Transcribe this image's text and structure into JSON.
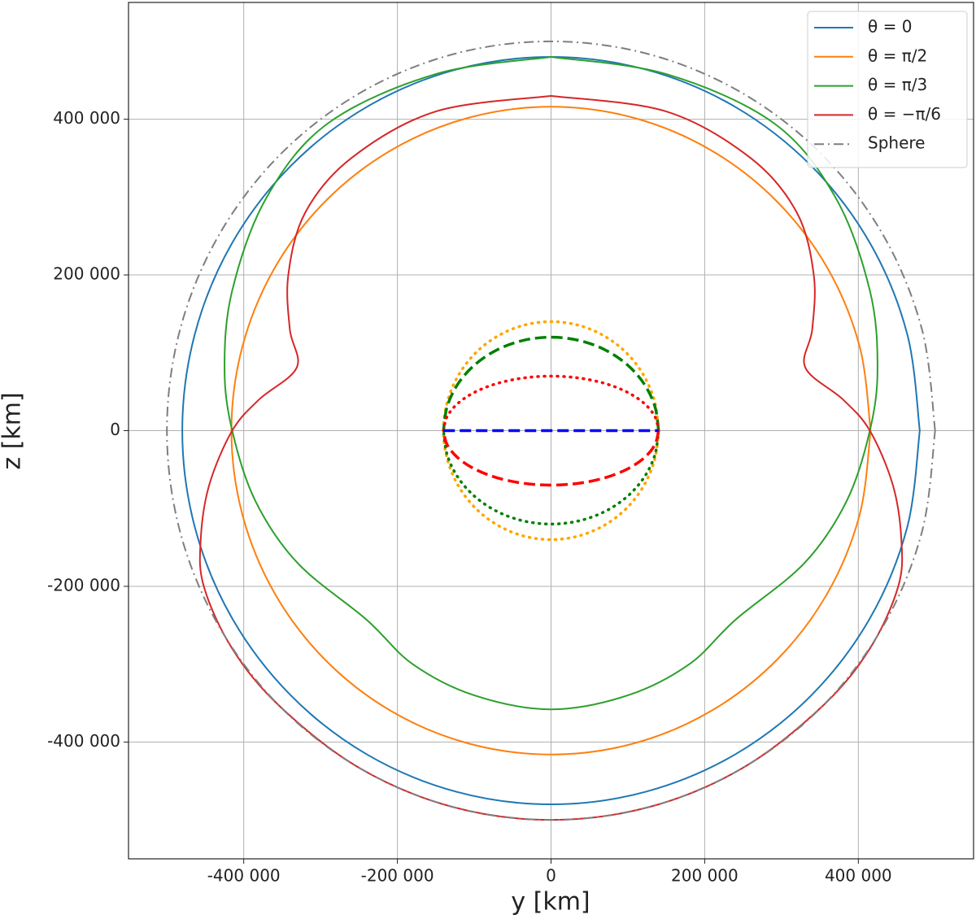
{
  "chart_data": {
    "type": "line",
    "x_label": "y [km]",
    "y_label": "z [km]",
    "xlim": [
      -550000,
      550000
    ],
    "ylim": [
      -550000,
      550000
    ],
    "xticks": [
      {
        "value": -400000,
        "label": "-400 000"
      },
      {
        "value": -200000,
        "label": "-200 000"
      },
      0,
      {
        "value": 200000,
        "label": "200 000"
      },
      {
        "value": 400000,
        "label": "400 000"
      }
    ],
    "yticks": [
      {
        "value": -400000,
        "label": "-400 000"
      },
      {
        "value": -200000,
        "label": "-200 000"
      },
      0,
      {
        "value": 200000,
        "label": "200 000"
      },
      {
        "value": 400000,
        "label": "400 000"
      }
    ],
    "grid": true,
    "legend": "upper right",
    "series": [
      {
        "name": "θ = 0",
        "color": "#1f77b4",
        "dash": "solid",
        "x": [
          480000,
          463600,
          415700,
          339400,
          240000,
          124200,
          0,
          -124200,
          -240000,
          -339400,
          -415700,
          -463600,
          -480000,
          -463600,
          -415700,
          -339400,
          -240000,
          -124200,
          0,
          124200,
          240000,
          339400,
          415700,
          463600,
          480000
        ],
        "y": [
          0,
          124200,
          240000,
          339400,
          415700,
          463600,
          480000,
          463600,
          415700,
          339400,
          240000,
          124200,
          0,
          -124200,
          -240000,
          -339400,
          -415700,
          -463600,
          -480000,
          -463600,
          -415700,
          -339400,
          -240000,
          -124200,
          0
        ]
      },
      {
        "name": "θ = π/2",
        "color": "#ff7f0e",
        "dash": "solid",
        "x": [
          416000,
          401800,
          360300,
          294200,
          208000,
          107700,
          0,
          -107700,
          -208000,
          -294200,
          -360300,
          -401800,
          -416000,
          -401800,
          -360300,
          -294200,
          -208000,
          -107700,
          0,
          107700,
          208000,
          294200,
          360300,
          401800,
          416000
        ],
        "y": [
          0,
          107700,
          208000,
          294200,
          360300,
          401800,
          416000,
          401800,
          360300,
          294200,
          208000,
          107700,
          0,
          -107700,
          -208000,
          -294200,
          -360300,
          -401800,
          -416000,
          -401800,
          -360300,
          -294200,
          -208000,
          -107700,
          0
        ]
      },
      {
        "name": "θ = π/3",
        "color": "#2ca02c",
        "dash": "solid",
        "x": [
          0,
          -150000,
          -290000,
          -370000,
          -415000,
          -425000,
          -415000,
          -385000,
          -330000,
          -240000,
          -180000,
          -100000,
          0,
          100000,
          180000,
          240000,
          330000,
          385000,
          415000,
          425000,
          415000,
          370000,
          290000,
          150000,
          0
        ],
        "y": [
          480000,
          458000,
          395000,
          300000,
          180000,
          80000,
          0,
          -90000,
          -170000,
          -243000,
          -300000,
          -340000,
          -358000,
          -340000,
          -300000,
          -243000,
          -170000,
          -90000,
          0,
          80000,
          180000,
          300000,
          395000,
          458000,
          480000
        ]
      },
      {
        "name": "θ = −π/6",
        "color": "#d62728",
        "dash": "solid",
        "x": [
          0,
          -150000,
          -260000,
          -320000,
          -342000,
          -340000,
          -331000,
          -380000,
          -415000,
          -445000,
          -456000,
          -452000,
          -415000,
          -353600,
          -250000,
          -129400,
          0,
          129400,
          250000,
          353600,
          415000,
          452000,
          456000,
          445000,
          415000,
          380000,
          331000,
          340000,
          342000,
          320000,
          260000,
          150000,
          0
        ],
        "y": [
          430000,
          410000,
          350000,
          280000,
          200000,
          130000,
          81000,
          40000,
          0,
          -70000,
          -140000,
          -200000,
          -280000,
          -353600,
          -433000,
          -483000,
          -500000,
          -483000,
          -433000,
          -353600,
          -280000,
          -200000,
          -140000,
          -70000,
          0,
          40000,
          81000,
          130000,
          200000,
          280000,
          350000,
          410000,
          430000
        ]
      },
      {
        "name": "Sphere",
        "color": "#7f7f7f",
        "dash": "dashdot",
        "x": [
          500000,
          483000,
          433000,
          353600,
          250000,
          129400,
          0,
          -129400,
          -250000,
          -353600,
          -433000,
          -483000,
          -500000,
          -483000,
          -433000,
          -353600,
          -250000,
          -129400,
          0,
          129400,
          250000,
          353600,
          433000,
          483000,
          500000
        ],
        "y": [
          0,
          129400,
          250000,
          353600,
          433000,
          483000,
          500000,
          483000,
          433000,
          353600,
          250000,
          129400,
          0,
          -129400,
          -250000,
          -353600,
          -433000,
          -483000,
          -500000,
          -483000,
          -433000,
          -353600,
          -250000,
          -129400,
          0
        ]
      },
      {
        "color": "#ffa500",
        "dash": "dotted",
        "x": [
          140000,
          135200,
          121200,
          99000,
          70000,
          36200,
          0,
          -36200,
          -70000,
          -99000,
          -121200,
          -135200,
          -140000,
          -135200,
          -121200,
          -99000,
          -70000,
          -36200,
          0,
          36200,
          70000,
          99000,
          121200,
          135200,
          140000
        ],
        "y": [
          0,
          36200,
          70000,
          99000,
          121200,
          135200,
          140000,
          135200,
          121200,
          99000,
          70000,
          36200,
          0,
          -36200,
          -70000,
          -99000,
          -121200,
          -135200,
          -140000,
          -135200,
          -121200,
          -99000,
          -70000,
          -36200,
          0
        ]
      },
      {
        "color": "#008000",
        "dash": "dashed",
        "x": [
          140000,
          135200,
          121200,
          99000,
          70000,
          36200,
          0,
          -36200,
          -70000,
          -99000,
          -121200,
          -135200,
          -140000
        ],
        "y": [
          0,
          31100,
          60000,
          84800,
          103900,
          115900,
          120000,
          115900,
          103900,
          84800,
          60000,
          31100,
          0
        ]
      },
      {
        "color": "#008000",
        "dash": "dotted",
        "x": [
          140000,
          135200,
          121200,
          99000,
          70000,
          36200,
          0,
          -36200,
          -70000,
          -99000,
          -121200,
          -135200,
          -140000
        ],
        "y": [
          0,
          -31100,
          -60000,
          -84800,
          -103900,
          -115900,
          -120000,
          -115900,
          -103900,
          -84800,
          -60000,
          -31100,
          0
        ]
      },
      {
        "color": "#ff0000",
        "dash": "dotted",
        "x": [
          140000,
          135200,
          121200,
          99000,
          70000,
          36200,
          0,
          -36200,
          -70000,
          -99000,
          -121200,
          -135200,
          -140000
        ],
        "y": [
          0,
          18100,
          35000,
          49500,
          60600,
          67600,
          70000,
          67600,
          60600,
          49500,
          35000,
          18100,
          0
        ]
      },
      {
        "color": "#ff0000",
        "dash": "dashed",
        "x": [
          140000,
          135200,
          121200,
          99000,
          70000,
          36200,
          0,
          -36200,
          -70000,
          -99000,
          -121200,
          -135200,
          -140000
        ],
        "y": [
          0,
          -18100,
          -35000,
          -49500,
          -60600,
          -67600,
          -70000,
          -67600,
          -60600,
          -49500,
          -35000,
          -18100,
          0
        ]
      },
      {
        "color": "#0000ff",
        "dash": "dashed",
        "x": [
          -140000,
          140000
        ],
        "y": [
          0,
          0
        ]
      }
    ]
  }
}
